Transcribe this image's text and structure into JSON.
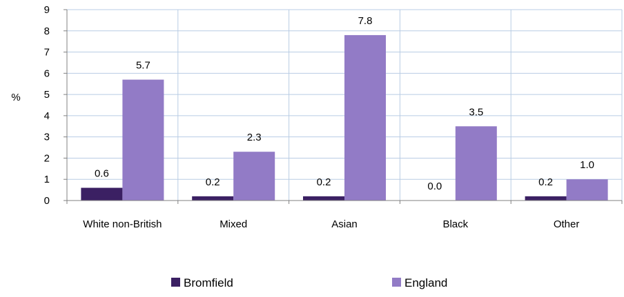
{
  "chart_data": {
    "type": "bar",
    "title": "",
    "xlabel": "",
    "ylabel": "%",
    "ylim": [
      0,
      9
    ],
    "yticks": [
      "0",
      "1",
      "2",
      "3",
      "4",
      "5",
      "6",
      "7",
      "8",
      "9"
    ],
    "categories": [
      "White non-British",
      "Mixed",
      "Asian",
      "Black",
      "Other"
    ],
    "series": [
      {
        "name": "Bromfield",
        "values": [
          0.6,
          0.2,
          0.2,
          0.0,
          0.2
        ],
        "labels": [
          "0.6",
          "0.2",
          "0.2",
          "0.0",
          "0.2"
        ],
        "color": "#3b2063"
      },
      {
        "name": "England",
        "values": [
          5.7,
          2.3,
          7.8,
          3.5,
          1.0
        ],
        "labels": [
          "5.7",
          "2.3",
          "7.8",
          "3.5",
          "1.0"
        ],
        "color": "#927bc6"
      }
    ],
    "grid": true,
    "grid_color": "#b8cce4",
    "legend": "bottom"
  }
}
